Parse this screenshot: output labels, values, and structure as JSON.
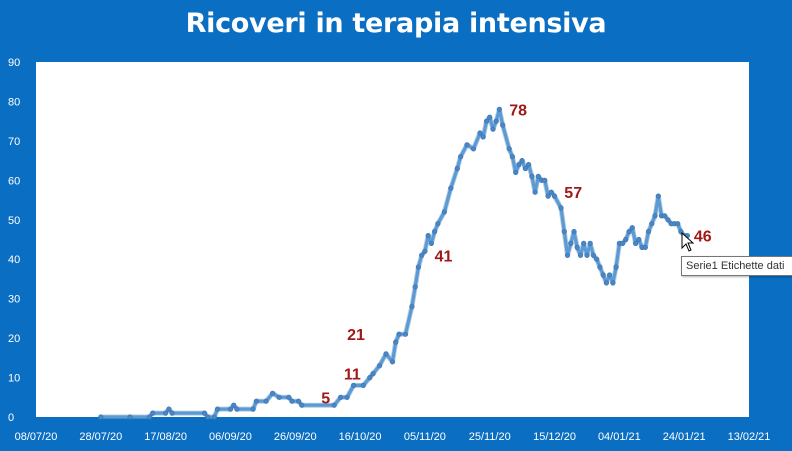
{
  "chart_data": {
    "type": "line",
    "title": "Ricoveri in terapia intensiva",
    "xlabel": "",
    "ylabel": "",
    "x_range": [
      "2020-07-08",
      "2021-02-13"
    ],
    "ylim": [
      0,
      90
    ],
    "y_ticks": [
      0,
      10,
      20,
      30,
      40,
      50,
      60,
      70,
      80,
      90
    ],
    "x_tick_labels": [
      "08/07/20",
      "28/07/20",
      "17/08/20",
      "06/09/20",
      "26/09/20",
      "16/10/20",
      "05/11/20",
      "25/11/20",
      "15/12/20",
      "04/01/21",
      "24/01/21",
      "13/02/21"
    ],
    "grid": false,
    "legend": "none",
    "line_color": "#5b9bd5",
    "series": [
      {
        "points": [
          [
            "2020-07-28",
            0
          ],
          [
            "2020-08-06",
            0
          ],
          [
            "2020-08-12",
            0
          ],
          [
            "2020-08-13",
            1
          ],
          [
            "2020-08-17",
            1
          ],
          [
            "2020-08-18",
            2
          ],
          [
            "2020-08-19",
            1
          ],
          [
            "2020-08-29",
            1
          ],
          [
            "2020-08-30",
            0
          ],
          [
            "2020-09-01",
            0
          ],
          [
            "2020-09-02",
            2
          ],
          [
            "2020-09-06",
            2
          ],
          [
            "2020-09-07",
            3
          ],
          [
            "2020-09-08",
            2
          ],
          [
            "2020-09-13",
            2
          ],
          [
            "2020-09-14",
            4
          ],
          [
            "2020-09-17",
            4
          ],
          [
            "2020-09-19",
            6
          ],
          [
            "2020-09-21",
            5
          ],
          [
            "2020-09-24",
            5
          ],
          [
            "2020-09-25",
            4
          ],
          [
            "2020-09-27",
            4
          ],
          [
            "2020-09-28",
            3
          ],
          [
            "2020-10-08",
            3
          ],
          [
            "2020-10-10",
            5
          ],
          [
            "2020-10-12",
            5
          ],
          [
            "2020-10-14",
            8
          ],
          [
            "2020-10-17",
            8
          ],
          [
            "2020-10-19",
            10
          ],
          [
            "2020-10-20",
            11
          ],
          [
            "2020-10-22",
            13
          ],
          [
            "2020-10-24",
            16
          ],
          [
            "2020-10-26",
            14
          ],
          [
            "2020-10-27",
            19
          ],
          [
            "2020-10-28",
            21
          ],
          [
            "2020-10-30",
            21
          ],
          [
            "2020-11-01",
            28
          ],
          [
            "2020-11-02",
            33
          ],
          [
            "2020-11-03",
            38
          ],
          [
            "2020-11-04",
            41
          ],
          [
            "2020-11-05",
            42
          ],
          [
            "2020-11-06",
            46
          ],
          [
            "2020-11-07",
            44
          ],
          [
            "2020-11-08",
            47
          ],
          [
            "2020-11-09",
            49
          ],
          [
            "2020-11-11",
            52
          ],
          [
            "2020-11-13",
            58
          ],
          [
            "2020-11-15",
            63
          ],
          [
            "2020-11-16",
            66
          ],
          [
            "2020-11-18",
            69
          ],
          [
            "2020-11-20",
            68
          ],
          [
            "2020-11-22",
            72
          ],
          [
            "2020-11-23",
            71
          ],
          [
            "2020-11-24",
            75
          ],
          [
            "2020-11-25",
            76
          ],
          [
            "2020-11-26",
            73
          ],
          [
            "2020-11-27",
            75
          ],
          [
            "2020-11-28",
            78
          ],
          [
            "2020-11-29",
            74
          ],
          [
            "2020-12-01",
            68
          ],
          [
            "2020-12-02",
            66
          ],
          [
            "2020-12-03",
            62
          ],
          [
            "2020-12-04",
            64
          ],
          [
            "2020-12-05",
            65
          ],
          [
            "2020-12-06",
            63
          ],
          [
            "2020-12-07",
            64
          ],
          [
            "2020-12-08",
            61
          ],
          [
            "2020-12-09",
            57
          ],
          [
            "2020-12-10",
            61
          ],
          [
            "2020-12-11",
            60
          ],
          [
            "2020-12-12",
            60
          ],
          [
            "2020-12-13",
            56
          ],
          [
            "2020-12-14",
            57
          ],
          [
            "2020-12-15",
            56
          ],
          [
            "2020-12-17",
            53
          ],
          [
            "2020-12-18",
            47
          ],
          [
            "2020-12-19",
            41
          ],
          [
            "2020-12-20",
            44
          ],
          [
            "2020-12-21",
            47
          ],
          [
            "2020-12-22",
            43
          ],
          [
            "2020-12-23",
            41
          ],
          [
            "2020-12-24",
            44
          ],
          [
            "2020-12-25",
            41
          ],
          [
            "2020-12-26",
            44
          ],
          [
            "2020-12-27",
            41
          ],
          [
            "2020-12-28",
            40
          ],
          [
            "2020-12-29",
            38
          ],
          [
            "2020-12-30",
            36
          ],
          [
            "2020-12-31",
            34
          ],
          [
            "2021-01-01",
            36
          ],
          [
            "2021-01-02",
            34
          ],
          [
            "2021-01-03",
            38
          ],
          [
            "2021-01-04",
            44
          ],
          [
            "2021-01-05",
            44
          ],
          [
            "2021-01-06",
            45
          ],
          [
            "2021-01-07",
            47
          ],
          [
            "2021-01-08",
            48
          ],
          [
            "2021-01-09",
            44
          ],
          [
            "2021-01-10",
            45
          ],
          [
            "2021-01-11",
            43
          ],
          [
            "2021-01-12",
            43
          ],
          [
            "2021-01-13",
            47
          ],
          [
            "2021-01-14",
            49
          ],
          [
            "2021-01-15",
            51
          ],
          [
            "2021-01-16",
            56
          ],
          [
            "2021-01-17",
            51
          ],
          [
            "2021-01-18",
            51
          ],
          [
            "2021-01-19",
            50
          ],
          [
            "2021-01-20",
            49
          ],
          [
            "2021-01-21",
            49
          ],
          [
            "2021-01-22",
            49
          ],
          [
            "2021-01-23",
            47
          ],
          [
            "2021-01-24",
            46
          ],
          [
            "2021-01-25",
            46
          ]
        ]
      }
    ],
    "data_labels": [
      {
        "x": "2020-10-04",
        "y": 5,
        "label": "5"
      },
      {
        "x": "2020-10-11",
        "y": 11,
        "label": "11"
      },
      {
        "x": "2020-10-12",
        "y": 21,
        "label": "21"
      },
      {
        "x": "2020-11-08",
        "y": 41,
        "label": "41"
      },
      {
        "x": "2020-12-01",
        "y": 78,
        "label": "78"
      },
      {
        "x": "2020-12-18",
        "y": 57,
        "label": "57"
      },
      {
        "x": "2021-01-27",
        "y": 46,
        "label": "46"
      }
    ]
  },
  "tooltip": {
    "text": "Serie1 Etichette dati"
  }
}
